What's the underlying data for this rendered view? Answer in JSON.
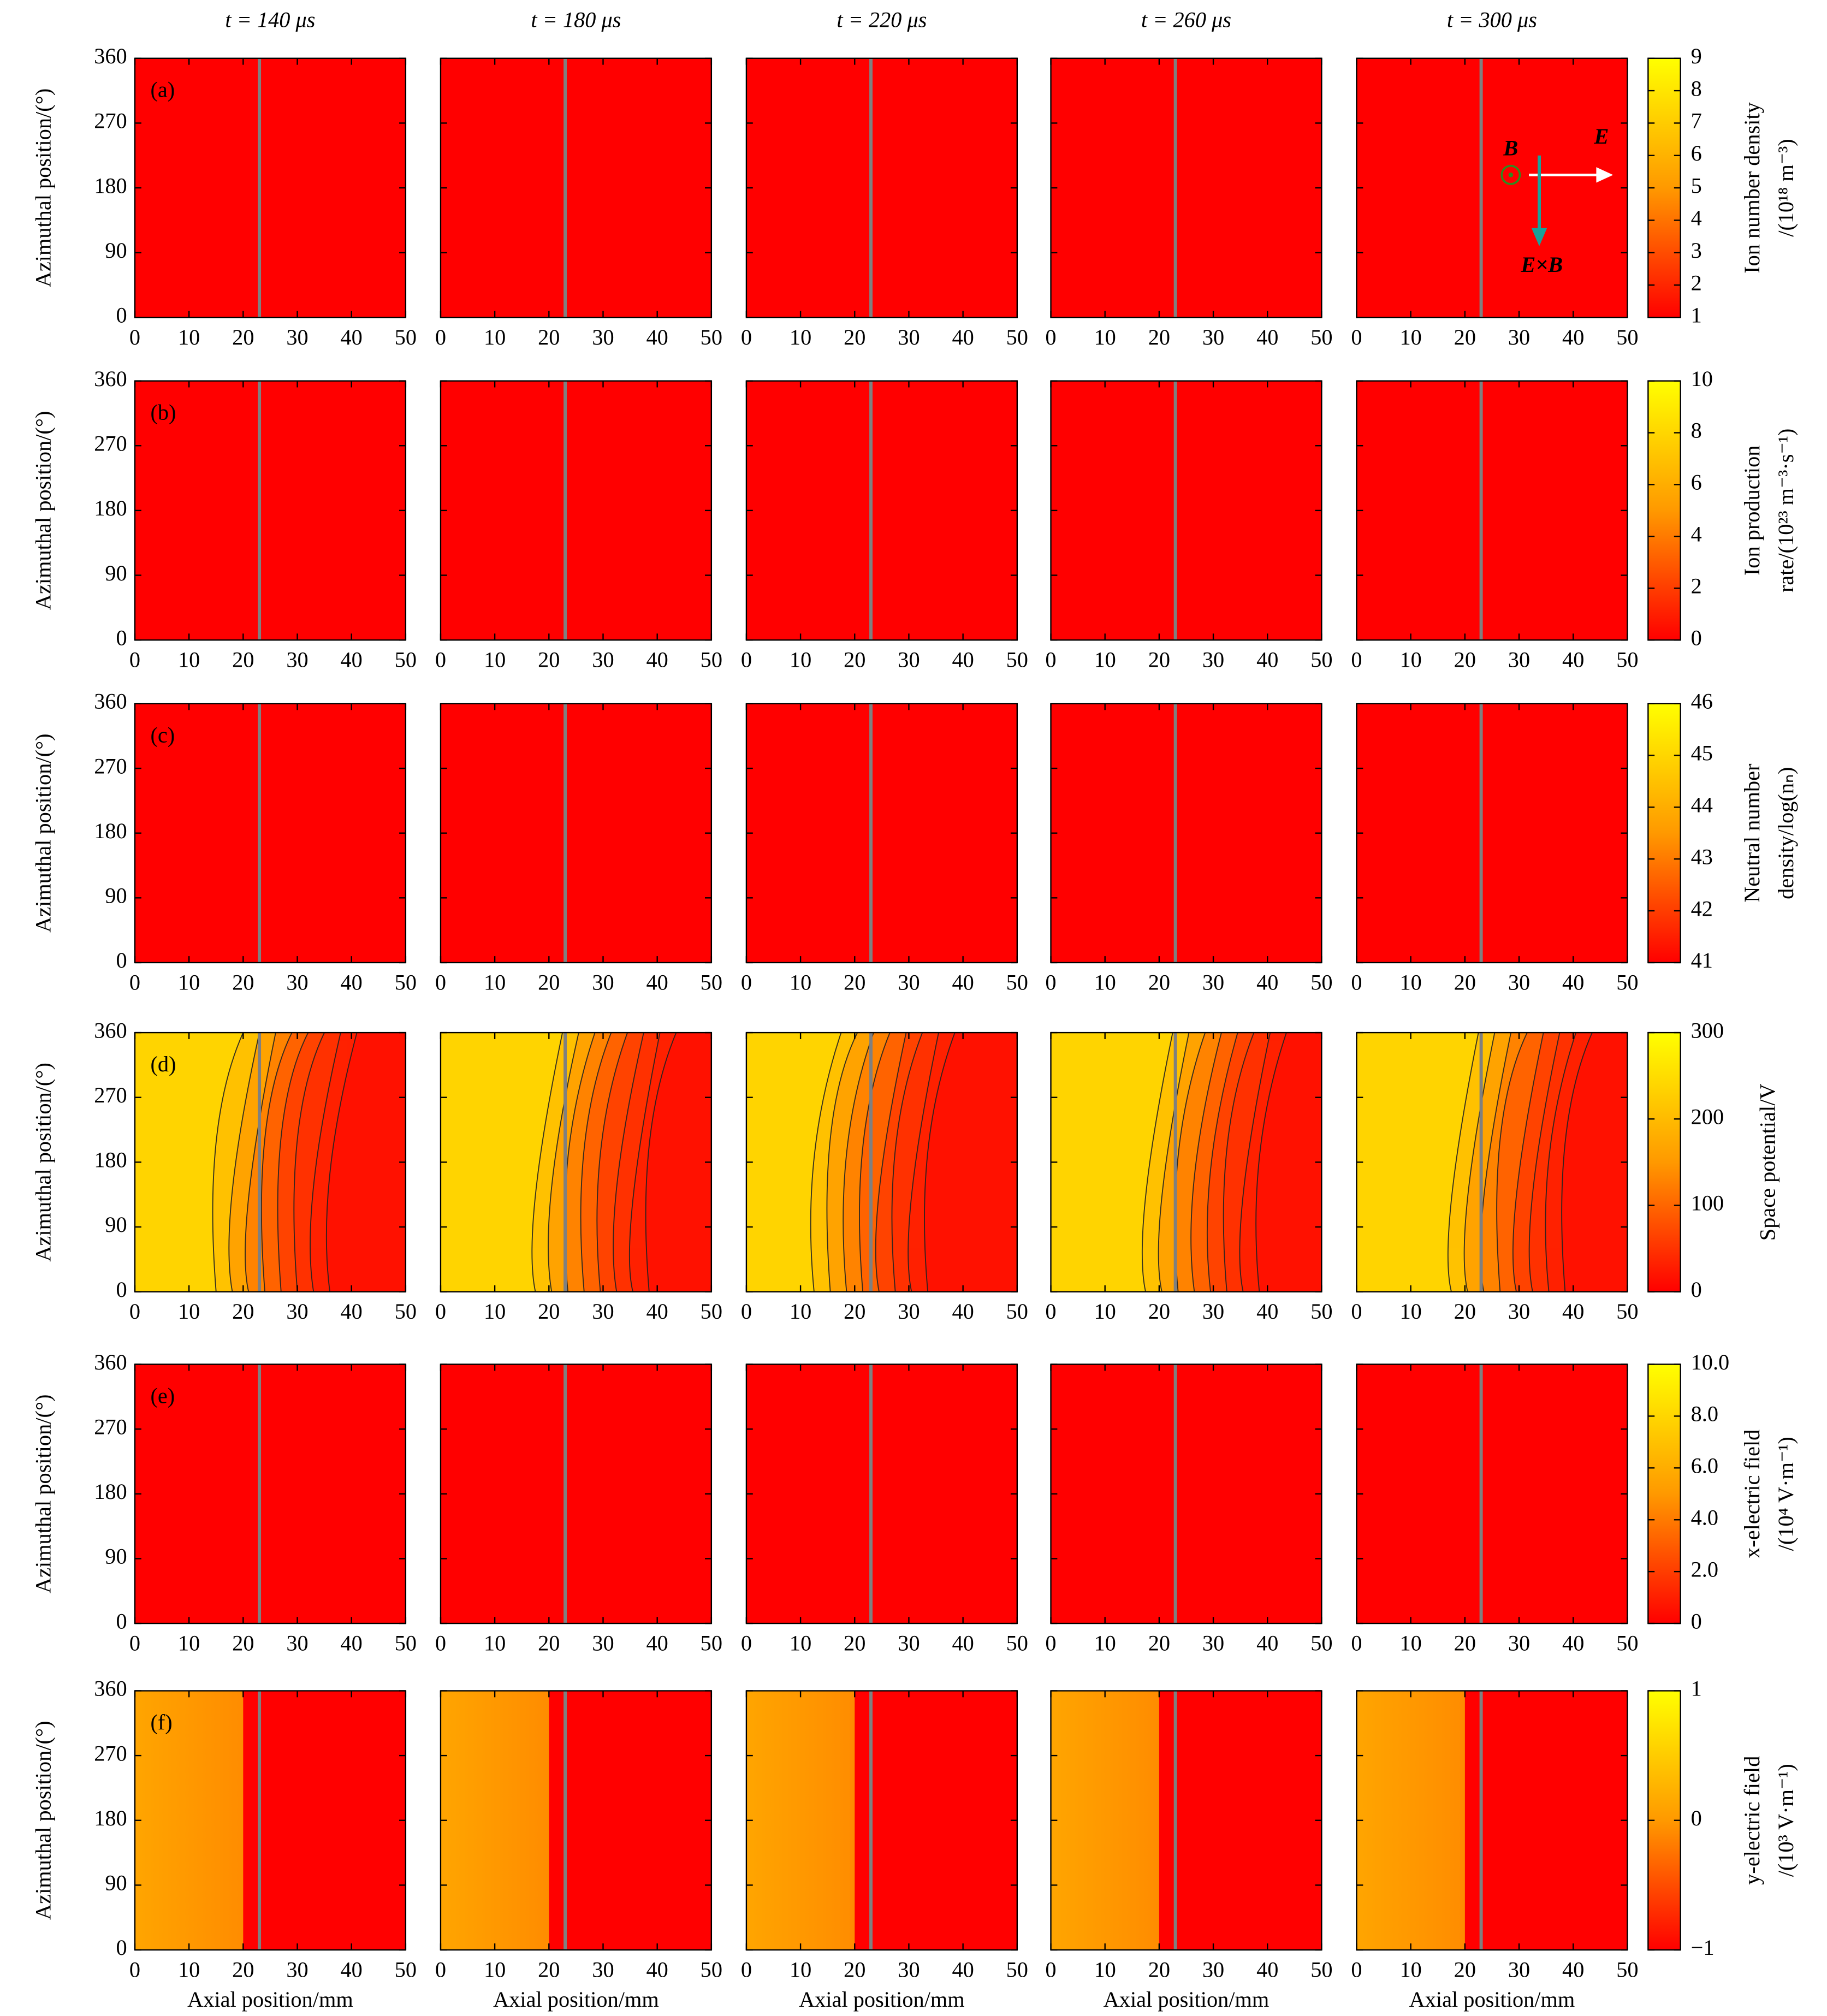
{
  "chart_data": {
    "type": "heatmap",
    "column_titles": [
      "t = 140 μs",
      "t = 180 μs",
      "t = 220 μs",
      "t = 260 μs",
      "t = 300 μs"
    ],
    "xlabel": "Axial position/mm",
    "ylabel": "Azimuthal position/(°)",
    "xlim": [
      0,
      50
    ],
    "xticks": [
      0,
      10,
      20,
      30,
      40,
      50
    ],
    "ylim": [
      0,
      360
    ],
    "yticks": [
      0,
      90,
      180,
      270,
      360
    ],
    "vline_x": 23,
    "vline_color": "#808080",
    "colors": [
      "#ff0000",
      "#ff9900",
      "#ffff00"
    ],
    "rows": [
      {
        "panel": "(a)",
        "colorbar_label": [
          "Ion number density",
          "/(10¹⁸ m⁻³)"
        ],
        "clim": [
          1,
          9
        ],
        "cticks": [
          1,
          2,
          3,
          4,
          5,
          6,
          7,
          8,
          9
        ]
      },
      {
        "panel": "(b)",
        "colorbar_label": [
          "Ion production",
          "rate/(10²³ m⁻³·s⁻¹)"
        ],
        "clim": [
          0,
          10
        ],
        "cticks": [
          0,
          2,
          4,
          6,
          8,
          10
        ]
      },
      {
        "panel": "(c)",
        "colorbar_label": [
          "Neutral number",
          "density/log(nₙ)"
        ],
        "clim": [
          41,
          46
        ],
        "cticks": [
          41,
          42,
          43,
          44,
          45,
          46
        ]
      },
      {
        "panel": "(d)",
        "colorbar_label": [
          "Space potential/V"
        ],
        "clim": [
          0,
          300
        ],
        "cticks": [
          0,
          100,
          200,
          300
        ]
      },
      {
        "panel": "(e)",
        "colorbar_label": [
          "x-electric field",
          "/(10⁴ V·m⁻¹)"
        ],
        "clim": [
          0,
          10
        ],
        "cticks": [
          0,
          {
            "value": 2,
            "label": "2.0"
          },
          {
            "value": 4,
            "label": "4.0"
          },
          {
            "value": 6,
            "label": "6.0"
          },
          {
            "value": 8,
            "label": "8.0"
          },
          {
            "value": 10,
            "label": "10.0"
          }
        ]
      },
      {
        "panel": "(f)",
        "colorbar_label": [
          "y-electric field",
          "/(10³ V·m⁻¹)"
        ],
        "clim": [
          -1,
          1
        ],
        "cticks": [
          {
            "value": -1,
            "label": "−1"
          },
          0,
          1
        ]
      }
    ],
    "annotations": [
      "B",
      "E",
      "E×B"
    ]
  }
}
